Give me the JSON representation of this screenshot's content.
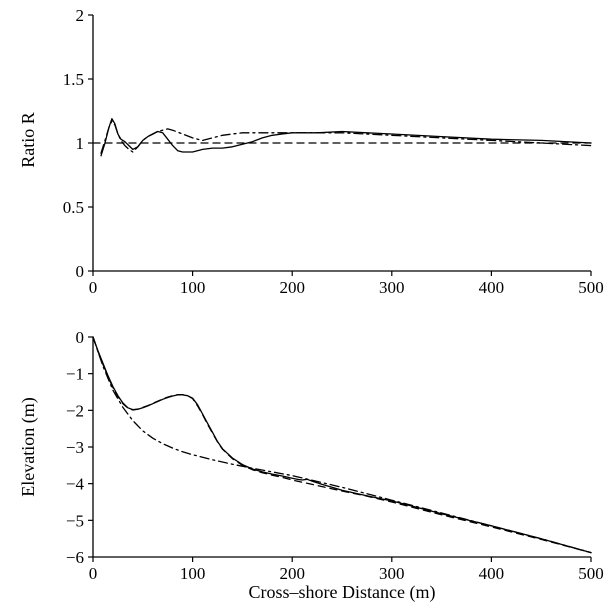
{
  "chart_data": [
    {
      "type": "line",
      "title": "",
      "xlabel": "",
      "ylabel": "Ratio R",
      "xlim": [
        0,
        500
      ],
      "ylim": [
        0,
        2
      ],
      "xticks": [
        "0",
        "100",
        "200",
        "300",
        "400",
        "500"
      ],
      "yticks": [
        "0",
        "0.5",
        "1",
        "1.5",
        "2"
      ],
      "grid": false,
      "series": [
        {
          "style": "solid",
          "x": [
            8,
            12,
            16,
            19,
            22,
            25,
            28,
            32,
            36,
            40,
            45,
            50,
            55,
            60,
            65,
            70,
            75,
            80,
            85,
            90,
            95,
            100,
            110,
            120,
            130,
            140,
            150,
            160,
            170,
            180,
            190,
            200,
            225,
            250,
            275,
            300,
            350,
            400,
            450,
            500
          ],
          "y": [
            0.9,
            1.0,
            1.12,
            1.19,
            1.15,
            1.07,
            1.03,
            1.01,
            0.98,
            0.95,
            0.97,
            1.02,
            1.05,
            1.07,
            1.09,
            1.08,
            1.03,
            0.98,
            0.94,
            0.93,
            0.93,
            0.93,
            0.95,
            0.96,
            0.96,
            0.97,
            0.99,
            1.01,
            1.04,
            1.06,
            1.07,
            1.08,
            1.08,
            1.09,
            1.08,
            1.07,
            1.05,
            1.03,
            1.02,
            1.0
          ]
        },
        {
          "style": "dashed",
          "x": [
            0,
            500
          ],
          "y": [
            1.0,
            1.0
          ]
        },
        {
          "style": "dashdot",
          "x": [
            8,
            12,
            16,
            19,
            22,
            25,
            28,
            32,
            36,
            40,
            45,
            50,
            55,
            60,
            65,
            70,
            75,
            80,
            90,
            100,
            110,
            120,
            130,
            140,
            150,
            200,
            250,
            300,
            350,
            400,
            450,
            500
          ],
          "y": [
            0.92,
            1.02,
            1.12,
            1.17,
            1.14,
            1.07,
            1.02,
            0.98,
            0.95,
            0.93,
            0.97,
            1.02,
            1.05,
            1.07,
            1.09,
            1.1,
            1.11,
            1.1,
            1.07,
            1.04,
            1.02,
            1.04,
            1.06,
            1.07,
            1.08,
            1.08,
            1.08,
            1.06,
            1.04,
            1.02,
            1.0,
            0.98
          ]
        }
      ]
    },
    {
      "type": "line",
      "title": "",
      "xlabel": "Cross–shore Distance (m)",
      "ylabel": "Elevation (m)",
      "xlim": [
        0,
        500
      ],
      "ylim": [
        -6,
        0
      ],
      "xticks": [
        "0",
        "100",
        "200",
        "300",
        "400",
        "500"
      ],
      "yticks": [
        "0",
        "−1",
        "−2",
        "−3",
        "−4",
        "−5",
        "−6"
      ],
      "grid": false,
      "series": [
        {
          "style": "solid",
          "x": [
            0,
            5,
            10,
            15,
            20,
            25,
            30,
            35,
            40,
            45,
            50,
            55,
            60,
            65,
            70,
            75,
            80,
            85,
            90,
            95,
            100,
            105,
            110,
            115,
            120,
            125,
            130,
            140,
            150,
            160,
            170,
            180,
            190,
            195,
            200,
            205,
            210,
            215,
            220,
            230,
            240,
            250,
            260,
            280,
            300,
            350,
            400,
            450,
            500
          ],
          "y": [
            0.0,
            -0.38,
            -0.72,
            -1.05,
            -1.35,
            -1.6,
            -1.8,
            -1.93,
            -1.98,
            -1.97,
            -1.93,
            -1.88,
            -1.82,
            -1.76,
            -1.7,
            -1.65,
            -1.61,
            -1.58,
            -1.58,
            -1.6,
            -1.67,
            -1.85,
            -2.1,
            -2.35,
            -2.6,
            -2.85,
            -3.05,
            -3.3,
            -3.48,
            -3.6,
            -3.68,
            -3.74,
            -3.79,
            -3.82,
            -3.85,
            -3.88,
            -3.9,
            -3.88,
            -3.93,
            -4.02,
            -4.1,
            -4.18,
            -4.24,
            -4.36,
            -4.47,
            -4.82,
            -5.15,
            -5.5,
            -5.88
          ]
        },
        {
          "style": "dashed",
          "x": [
            0,
            5,
            10,
            15,
            20,
            25,
            30,
            35,
            40,
            45,
            50,
            55,
            60,
            65,
            70,
            75,
            80,
            85,
            90,
            95,
            100,
            105,
            110,
            115,
            120,
            125,
            130,
            140,
            150,
            160,
            170,
            180,
            190,
            200,
            225,
            250,
            275,
            300,
            350,
            400,
            450,
            500
          ],
          "y": [
            0.0,
            -0.4,
            -0.75,
            -1.08,
            -1.38,
            -1.62,
            -1.82,
            -1.94,
            -1.99,
            -1.97,
            -1.92,
            -1.87,
            -1.81,
            -1.75,
            -1.69,
            -1.64,
            -1.6,
            -1.57,
            -1.57,
            -1.6,
            -1.68,
            -1.88,
            -2.12,
            -2.38,
            -2.62,
            -2.86,
            -3.06,
            -3.32,
            -3.5,
            -3.62,
            -3.7,
            -3.77,
            -3.83,
            -3.9,
            -4.05,
            -4.2,
            -4.34,
            -4.5,
            -4.85,
            -5.18,
            -5.52,
            -5.88
          ]
        },
        {
          "style": "dashdot",
          "x": [
            0,
            10,
            20,
            30,
            40,
            50,
            60,
            70,
            80,
            90,
            100,
            120,
            140,
            160,
            180,
            200,
            250,
            300,
            350,
            400,
            450,
            500
          ],
          "y": [
            0.0,
            -0.8,
            -1.45,
            -1.92,
            -2.28,
            -2.56,
            -2.76,
            -2.91,
            -3.03,
            -3.13,
            -3.21,
            -3.35,
            -3.47,
            -3.58,
            -3.68,
            -3.78,
            -4.1,
            -4.45,
            -4.8,
            -5.15,
            -5.5,
            -5.88
          ]
        }
      ]
    }
  ]
}
